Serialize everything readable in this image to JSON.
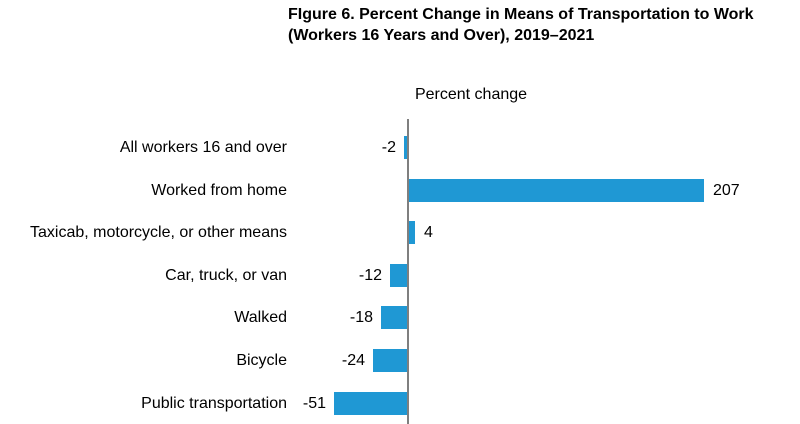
{
  "chart_data": {
    "type": "bar",
    "orientation": "horizontal",
    "title_lines": [
      "FIgure 6. Percent Change in Means of Transportation to Work",
      "(Workers 16 Years and Over), 2019–2021"
    ],
    "axis_title": "Percent change",
    "categories": [
      "All workers 16 and over",
      "Worked from home",
      "Taxicab, motorcycle, or other means",
      "Car, truck, or van",
      "Walked",
      "Bicycle",
      "Public transportation"
    ],
    "values": [
      -2,
      207,
      4,
      -12,
      -18,
      -24,
      -51
    ],
    "value_labels": [
      "-2",
      "207",
      "4",
      "-12",
      "-18",
      "-24",
      "-51"
    ],
    "xlim": [
      -60,
      280
    ],
    "grid": false,
    "legend": false,
    "bar_color": "#1f98d4",
    "axis_color": "#7f7f7f",
    "text_color": "#000000"
  }
}
